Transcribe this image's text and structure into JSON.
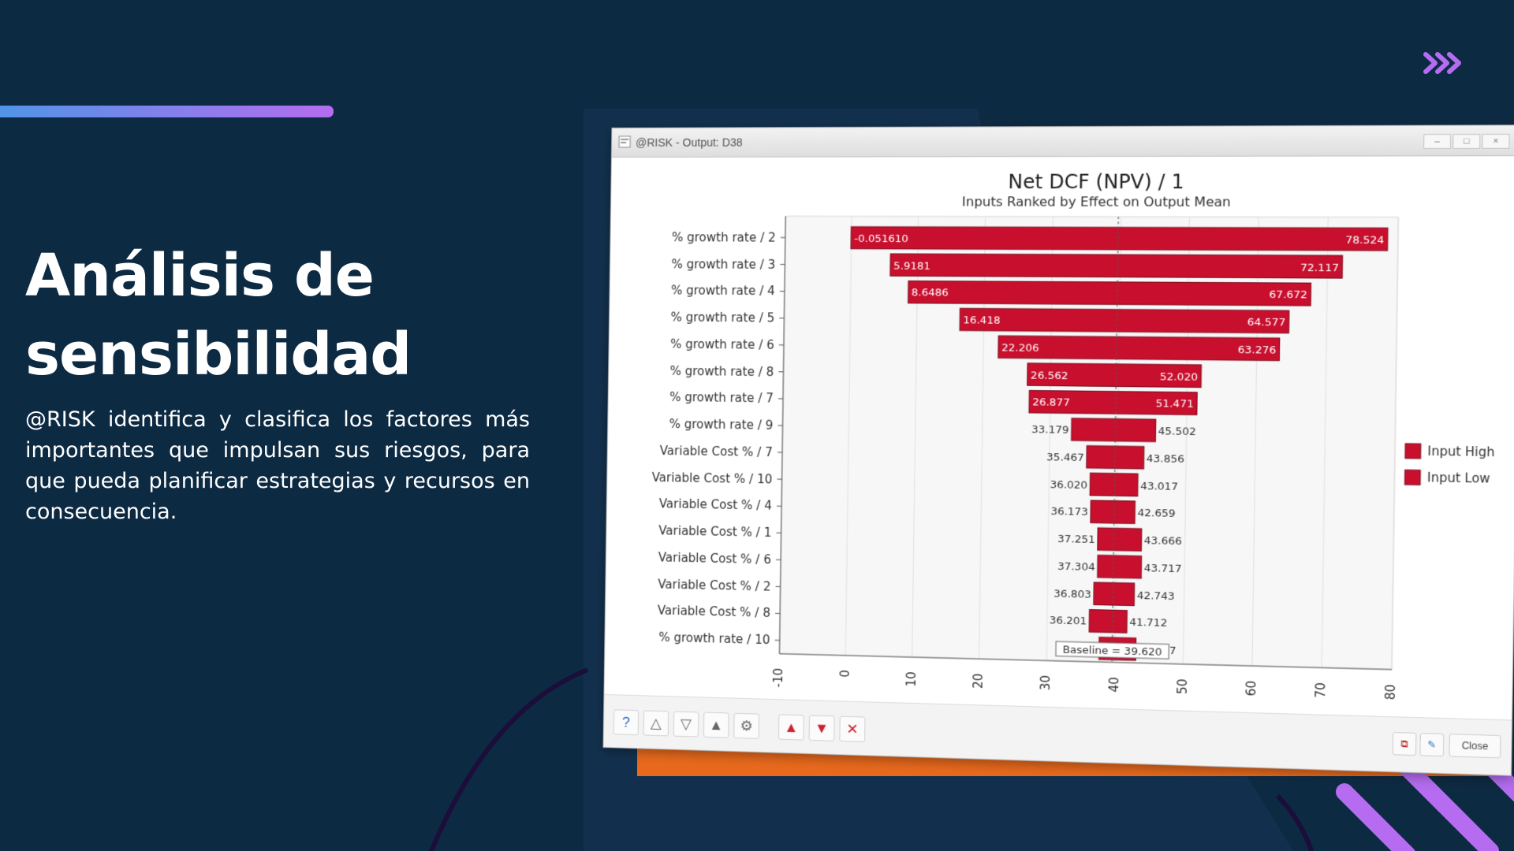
{
  "slide": {
    "title": "Análisis de sensibilidad",
    "body": "@RISK identifica y clasifica los factores más importantes que impulsan sus riesgos, para que pueda planificar estrategias y recursos en consecuencia.",
    "arrows_icon": "triple-chevron-right-icon",
    "colors": {
      "background": "#0d2a43",
      "panel": "#12304d",
      "orange": "#e8691c",
      "purple": "#b56cf0",
      "blue": "#4e95e6"
    }
  },
  "window": {
    "title": "@RISK - Output: D38",
    "minimize_label": "–",
    "maximize_label": "□",
    "close_label": "×"
  },
  "chart_data": {
    "type": "tornado",
    "title": "Net DCF (NPV) / 1",
    "subtitle": "Inputs Ranked by Effect on Output Mean",
    "xlim": [
      -10,
      80
    ],
    "xticks": [
      "-10",
      "0",
      "10",
      "20",
      "30",
      "40",
      "50",
      "60",
      "70",
      "80"
    ],
    "baseline": 39.62,
    "baseline_label": "Baseline = 39.620",
    "legend": [
      "Input High",
      "Input Low"
    ],
    "legend_position": "right",
    "bar_color": "#c8102e",
    "categories": [
      "% growth rate / 2",
      "% growth rate / 3",
      "% growth rate / 4",
      "% growth rate / 5",
      "% growth rate / 6",
      "% growth rate / 8",
      "% growth rate / 7",
      "% growth rate / 9",
      "Variable Cost % / 7",
      "Variable Cost % / 10",
      "Variable Cost % / 4",
      "Variable Cost % / 1",
      "Variable Cost % / 6",
      "Variable Cost % / 2",
      "Variable Cost % / 8",
      "% growth rate / 10"
    ],
    "low_values": [
      -0.05161,
      5.9181,
      8.6486,
      16.418,
      22.206,
      26.562,
      26.877,
      33.179,
      35.467,
      36.02,
      36.173,
      37.251,
      37.304,
      36.803,
      36.201,
      37.684
    ],
    "high_values": [
      78.524,
      72.117,
      67.672,
      64.577,
      63.276,
      52.02,
      51.471,
      45.502,
      43.856,
      43.017,
      42.659,
      43.666,
      43.717,
      42.743,
      41.712,
      43.077
    ],
    "low_labels": [
      "-0.051610",
      "5.9181",
      "8.6486",
      "16.418",
      "22.206",
      "26.562",
      "26.877",
      "33.179",
      "35.467",
      "36.020",
      "36.173",
      "37.251",
      "37.304",
      "36.803",
      "36.201",
      "37.684"
    ],
    "high_labels": [
      "78.524",
      "72.117",
      "67.672",
      "64.577",
      "63.276",
      "52.020",
      "51.471",
      "45.502",
      "43.856",
      "43.017",
      "42.659",
      "43.666",
      "43.717",
      "42.743",
      "41.712",
      "43.077"
    ]
  },
  "toolbar": {
    "left_icons": [
      "help-icon",
      "distribution-icon",
      "filter-icon",
      "histogram-icon",
      "settings-icon"
    ],
    "right_icons": [
      "tornado-up-icon",
      "tornado-down-icon",
      "delete-icon"
    ],
    "copy_icon": "copy-icon",
    "edit_icon": "edit-icon",
    "close_label": "Close"
  }
}
